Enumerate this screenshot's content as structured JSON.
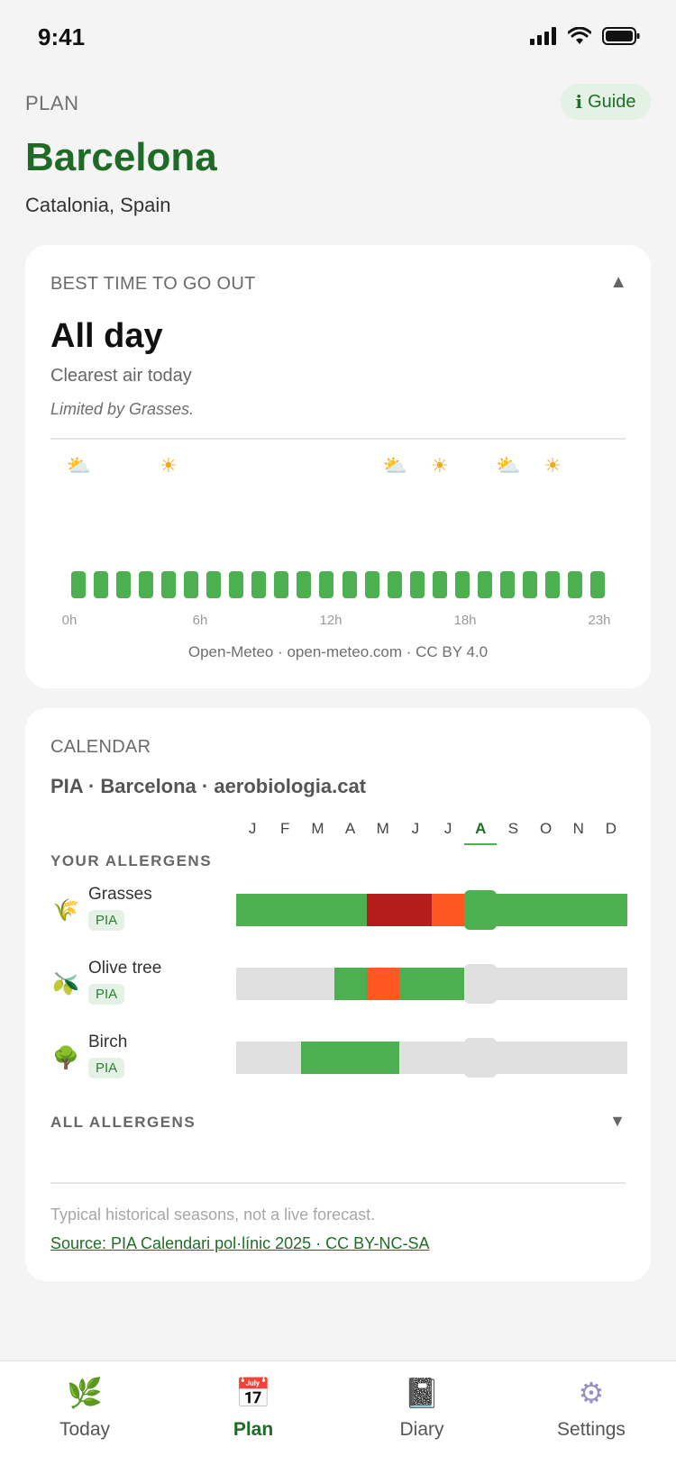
{
  "status_bar": {
    "time": "9:41"
  },
  "header": {
    "section_label": "PLAN",
    "guide_button": {
      "icon": "i",
      "label": "Guide"
    },
    "city": "Barcelona",
    "region": "Catalonia, Spain"
  },
  "best_time_card": {
    "title": "BEST TIME TO GO OUT",
    "collapse_icon": "▲",
    "best_time": "All day",
    "subtitle": "Clearest air today",
    "limited_by": "Limited by Grasses.",
    "weather_icons": [
      {
        "hour": 0,
        "icon": "partly-cloudy-icon",
        "glyph": "⛅"
      },
      {
        "hour": 4,
        "icon": "sun-icon",
        "glyph": "☀"
      },
      {
        "hour": 14,
        "icon": "partly-cloudy-icon",
        "glyph": "⛅"
      },
      {
        "hour": 16,
        "icon": "sun-icon",
        "glyph": "☀"
      },
      {
        "hour": 19,
        "icon": "partly-cloudy-icon",
        "glyph": "⛅"
      },
      {
        "hour": 21,
        "icon": "sun-icon",
        "glyph": "☀"
      }
    ],
    "hourly_bars": {
      "count": 24,
      "level": "good",
      "color": "#4caf50"
    },
    "hour_labels": [
      "0h",
      "6h",
      "12h",
      "18h",
      "23h"
    ],
    "attribution": "Open-Meteo · open-meteo.com · CC BY 4.0"
  },
  "calendar_card": {
    "title": "CALENDAR",
    "subtitle": "PIA · Barcelona · aerobiologia.cat",
    "months": [
      "J",
      "F",
      "M",
      "A",
      "M",
      "J",
      "J",
      "A",
      "S",
      "O",
      "N",
      "D"
    ],
    "current_month_index": 7,
    "your_allergens_label": "YOUR ALLERGENS",
    "allergens": [
      {
        "name": "Grasses",
        "badge": "PIA",
        "icon": "grass-icon",
        "glyph": "🌾",
        "segments": [
          {
            "from": 0,
            "to": 4,
            "level": "low",
            "color": "#4caf50"
          },
          {
            "from": 4,
            "to": 6,
            "level": "very-high",
            "color": "#b71c1c"
          },
          {
            "from": 6,
            "to": 7,
            "level": "high",
            "color": "#ff5722"
          },
          {
            "from": 7,
            "to": 12,
            "level": "low",
            "color": "#4caf50"
          }
        ],
        "marker_color": "#4caf50"
      },
      {
        "name": "Olive tree",
        "badge": "PIA",
        "icon": "olive-icon",
        "glyph": "🫒",
        "segments": [
          {
            "from": 0,
            "to": 3,
            "level": "none",
            "color": "#e0e0e0"
          },
          {
            "from": 3,
            "to": 4,
            "level": "low",
            "color": "#4caf50"
          },
          {
            "from": 4,
            "to": 5,
            "level": "high",
            "color": "#ff5722"
          },
          {
            "from": 5,
            "to": 7,
            "level": "low",
            "color": "#4caf50"
          },
          {
            "from": 7,
            "to": 12,
            "level": "none",
            "color": "#e0e0e0"
          }
        ],
        "marker_color": "#e0e0e0"
      },
      {
        "name": "Birch",
        "badge": "PIA",
        "icon": "tree-icon",
        "glyph": "🌳",
        "segments": [
          {
            "from": 0,
            "to": 2,
            "level": "none",
            "color": "#e0e0e0"
          },
          {
            "from": 2,
            "to": 5,
            "level": "low",
            "color": "#4caf50"
          },
          {
            "from": 5,
            "to": 12,
            "level": "none",
            "color": "#e0e0e0"
          }
        ],
        "marker_color": "#e0e0e0"
      }
    ],
    "all_allergens_label": "ALL ALLERGENS",
    "expand_icon": "▼",
    "footnote": "Typical historical seasons, not a live forecast.",
    "source_link": "Source: PIA Calendari pol·línic 2025 · CC BY-NC-SA"
  },
  "tab_bar": {
    "active": "Plan",
    "tabs": [
      {
        "label": "Today",
        "icon": "seedling-icon",
        "glyph": "🌿"
      },
      {
        "label": "Plan",
        "icon": "calendar-icon",
        "glyph": "📅"
      },
      {
        "label": "Diary",
        "icon": "notebook-icon",
        "glyph": "📓"
      },
      {
        "label": "Settings",
        "icon": "gear-icon",
        "glyph": "⚙"
      }
    ]
  },
  "colors": {
    "brand_green": "#1e6b26",
    "good": "#4caf50",
    "high": "#ff5722",
    "very_high": "#b71c1c",
    "none": "#e0e0e0"
  }
}
